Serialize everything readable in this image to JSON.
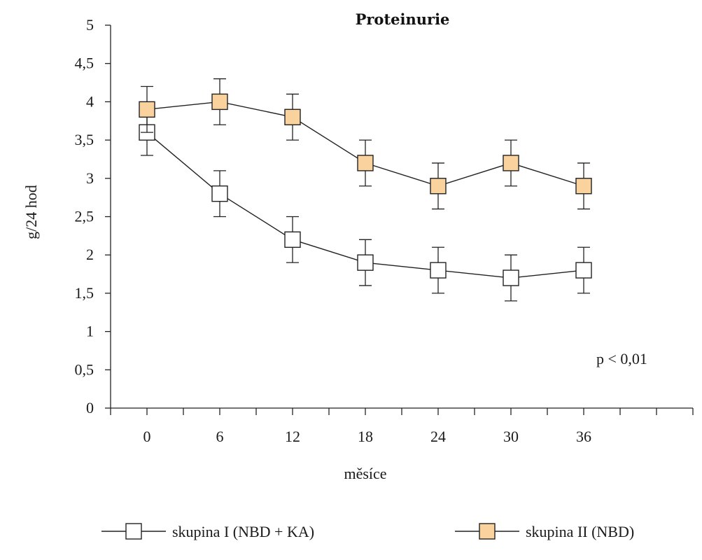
{
  "chart_data": {
    "type": "line",
    "title": "Proteinurie",
    "xlabel": "měsíce",
    "ylabel": "g/24 hod",
    "x": [
      0,
      6,
      12,
      18,
      24,
      30,
      36
    ],
    "x_tick_labels": [
      "0",
      "6",
      "12",
      "18",
      "24",
      "30",
      "36"
    ],
    "y_tick_labels": [
      "0",
      "0,5",
      "1",
      "1,5",
      "2",
      "2,5",
      "3",
      "3,5",
      "4",
      "4,5",
      "5"
    ],
    "ylim": [
      0,
      5
    ],
    "xlim": [
      -3,
      45
    ],
    "grid": false,
    "legend_position": "bottom",
    "annotation": "p < 0,01",
    "series": [
      {
        "name": "skupina I (NBD + KA)",
        "values": [
          3.6,
          2.8,
          2.2,
          1.9,
          1.8,
          1.7,
          1.8
        ],
        "error": [
          0.3,
          0.3,
          0.3,
          0.3,
          0.3,
          0.3,
          0.3
        ],
        "marker_fill": "#ffffff"
      },
      {
        "name": "skupina II (NBD)",
        "values": [
          3.9,
          4.0,
          3.8,
          3.2,
          2.9,
          3.2,
          2.9
        ],
        "error": [
          0.3,
          0.3,
          0.3,
          0.3,
          0.3,
          0.3,
          0.3
        ],
        "marker_fill": "#f9d29e"
      }
    ]
  }
}
